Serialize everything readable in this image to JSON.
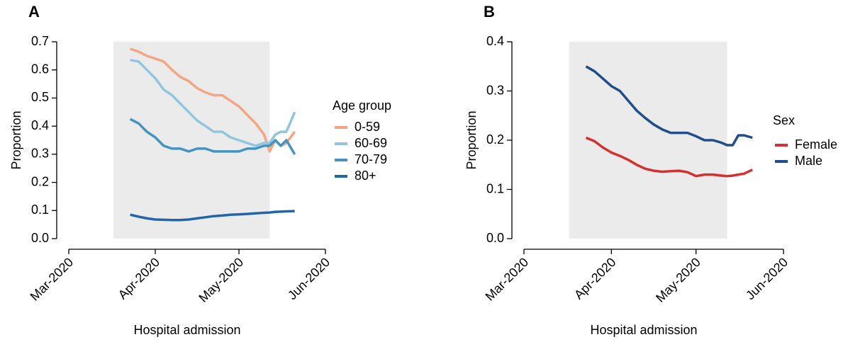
{
  "chart_data": [
    {
      "type": "line",
      "panel": "A",
      "xlabel": "Hospital admission",
      "ylabel": "Proportion",
      "legend_title": "Age group",
      "legend": "right",
      "xlim": [
        0,
        92
      ],
      "xticks": [
        {
          "value": 0,
          "label": "Mar-2020"
        },
        {
          "value": 31,
          "label": "Apr-2020"
        },
        {
          "value": 61,
          "label": "May-2020"
        },
        {
          "value": 92,
          "label": "Jun-2020"
        }
      ],
      "ylim": [
        0,
        0.7
      ],
      "yticks": [
        {
          "value": 0,
          "label": "0.0"
        },
        0.1,
        0.2,
        0.3,
        0.4,
        0.5,
        0.6,
        0.7
      ],
      "shade": [
        16,
        72
      ],
      "shade_color": "#ebebeb",
      "x": [
        22,
        25,
        28,
        31,
        34,
        37,
        40,
        43,
        46,
        49,
        52,
        55,
        58,
        61,
        64,
        67,
        70,
        72,
        74,
        76,
        78,
        81
      ],
      "series": [
        {
          "name": "0-59",
          "color": "#f4a582",
          "values": [
            0.675,
            0.665,
            0.65,
            0.64,
            0.63,
            0.6,
            0.575,
            0.56,
            0.535,
            0.52,
            0.51,
            0.51,
            0.49,
            0.47,
            0.44,
            0.41,
            0.37,
            0.31,
            0.35,
            0.33,
            0.34,
            0.38
          ]
        },
        {
          "name": "60-69",
          "color": "#92c5de",
          "values": [
            0.635,
            0.63,
            0.6,
            0.57,
            0.53,
            0.51,
            0.48,
            0.45,
            0.42,
            0.4,
            0.38,
            0.38,
            0.36,
            0.35,
            0.34,
            0.33,
            0.34,
            0.34,
            0.37,
            0.38,
            0.38,
            0.45
          ]
        },
        {
          "name": "70-79",
          "color": "#4393c3",
          "values": [
            0.425,
            0.41,
            0.38,
            0.36,
            0.33,
            0.32,
            0.32,
            0.31,
            0.32,
            0.32,
            0.31,
            0.31,
            0.31,
            0.31,
            0.32,
            0.32,
            0.33,
            0.33,
            0.35,
            0.33,
            0.35,
            0.3
          ]
        },
        {
          "name": "80+",
          "color": "#2166ac",
          "values": [
            0.085,
            0.078,
            0.072,
            0.068,
            0.067,
            0.066,
            0.066,
            0.068,
            0.072,
            0.076,
            0.08,
            0.082,
            0.085,
            0.086,
            0.088,
            0.09,
            0.092,
            0.093,
            0.095,
            0.096,
            0.097,
            0.098
          ]
        }
      ]
    },
    {
      "type": "line",
      "panel": "B",
      "xlabel": "Hospital admission",
      "ylabel": "Proportion",
      "legend_title": "Sex",
      "legend": "right",
      "xlim": [
        0,
        92
      ],
      "xticks": [
        {
          "value": 0,
          "label": "Mar-2020"
        },
        {
          "value": 31,
          "label": "Apr-2020"
        },
        {
          "value": 61,
          "label": "May-2020"
        },
        {
          "value": 92,
          "label": "Jun-2020"
        }
      ],
      "ylim": [
        0,
        0.4
      ],
      "yticks": [
        {
          "value": 0,
          "label": "0.0"
        },
        0.1,
        0.2,
        0.3,
        0.4
      ],
      "shade": [
        16,
        72
      ],
      "shade_color": "#ebebeb",
      "x": [
        22,
        25,
        28,
        31,
        34,
        37,
        40,
        43,
        46,
        49,
        52,
        55,
        58,
        61,
        64,
        67,
        70,
        72,
        74,
        76,
        78,
        81
      ],
      "series": [
        {
          "name": "Female",
          "color": "#d62f2f",
          "values": [
            0.205,
            0.198,
            0.185,
            0.175,
            0.168,
            0.16,
            0.15,
            0.142,
            0.138,
            0.136,
            0.137,
            0.138,
            0.135,
            0.127,
            0.13,
            0.13,
            0.128,
            0.127,
            0.128,
            0.13,
            0.132,
            0.14
          ]
        },
        {
          "name": "Male",
          "color": "#1f4e8c",
          "values": [
            0.35,
            0.34,
            0.325,
            0.31,
            0.3,
            0.28,
            0.26,
            0.245,
            0.232,
            0.222,
            0.215,
            0.215,
            0.215,
            0.208,
            0.2,
            0.2,
            0.195,
            0.19,
            0.19,
            0.21,
            0.21,
            0.205
          ]
        }
      ]
    }
  ]
}
